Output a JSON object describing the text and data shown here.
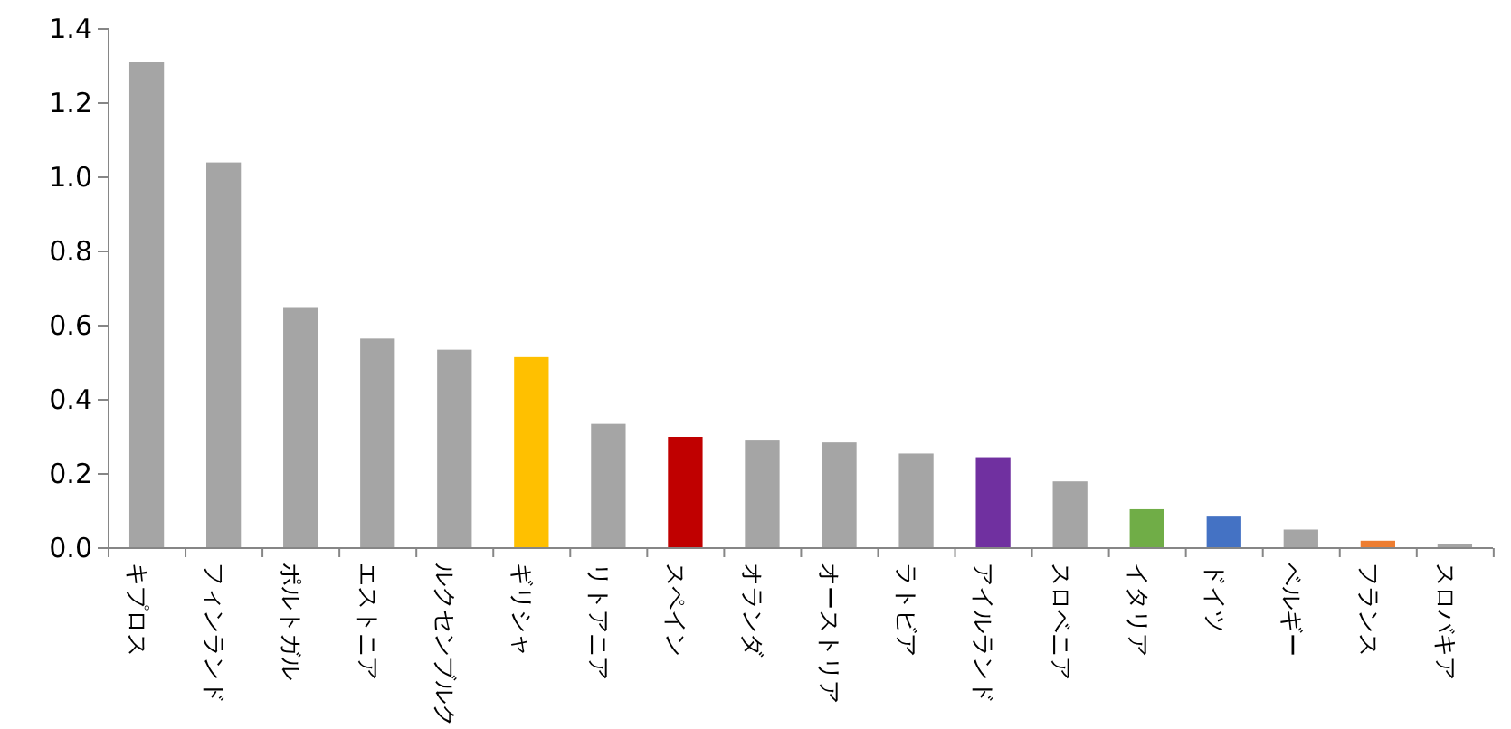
{
  "chart_data": {
    "type": "bar",
    "categories": [
      "キプロス",
      "フィンランド",
      "ポルトガル",
      "エストニア",
      "ルクセンブルク",
      "ギリシャ",
      "リトアニア",
      "スペイン",
      "オランダ",
      "オーストリア",
      "ラトビア",
      "アイルランド",
      "スロベニア",
      "イタリア",
      "ドイツ",
      "ベルギー",
      "フランス",
      "スロバキア"
    ],
    "values": [
      1.31,
      1.04,
      0.65,
      0.565,
      0.535,
      0.515,
      0.335,
      0.3,
      0.29,
      0.285,
      0.255,
      0.245,
      0.18,
      0.105,
      0.085,
      0.05,
      0.02,
      0.012
    ],
    "colors": [
      "#a5a5a5",
      "#a5a5a5",
      "#a5a5a5",
      "#a5a5a5",
      "#a5a5a5",
      "#ffc000",
      "#a5a5a5",
      "#c00000",
      "#a5a5a5",
      "#a5a5a5",
      "#a5a5a5",
      "#7030a0",
      "#a5a5a5",
      "#70ad47",
      "#4472c4",
      "#a5a5a5",
      "#ed7d31",
      "#a5a5a5"
    ],
    "ylim": [
      0,
      1.4
    ],
    "yticks": [
      {
        "value": 0,
        "label": "0.0"
      },
      0.2,
      0.4,
      0.6,
      0.8,
      {
        "value": 1,
        "label": "1.0"
      },
      1.2,
      1.4
    ],
    "grid": false
  }
}
